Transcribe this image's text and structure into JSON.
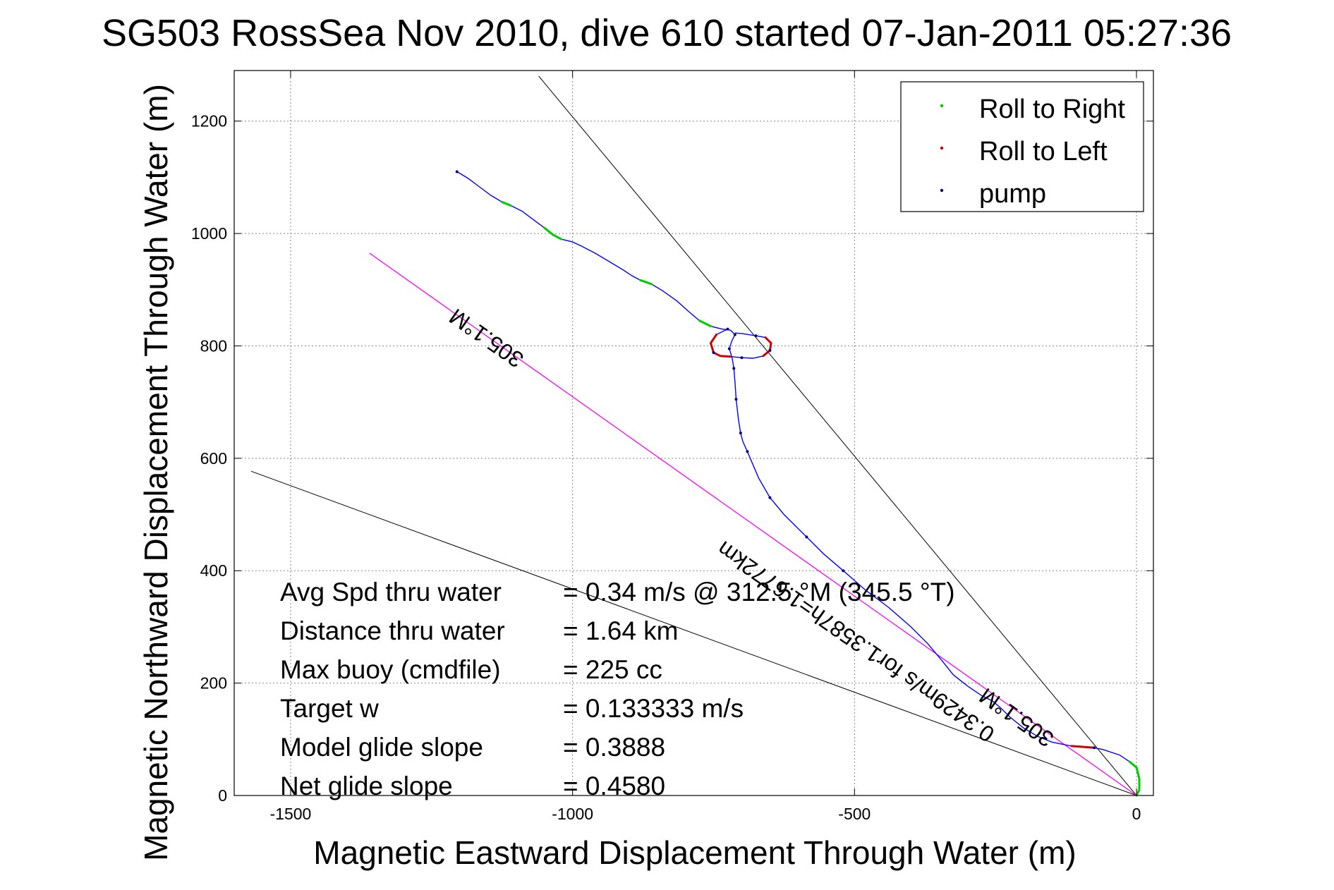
{
  "chart_data": {
    "type": "line",
    "title": "SG503 RossSea Nov 2010, dive 610 started 07-Jan-2011 05:27:36",
    "xlabel": "Magnetic Eastward Displacement Through Water (m)",
    "ylabel": "Magnetic Northward Displacement Through Water (m)",
    "xlim": [
      -1600,
      30
    ],
    "ylim": [
      0,
      1290
    ],
    "xticks": [
      -1500,
      -1000,
      -500,
      0
    ],
    "yticks": [
      0,
      200,
      400,
      600,
      800,
      1000,
      1200
    ],
    "grid": true,
    "legend_position": "top-right",
    "legend": [
      {
        "label": "Roll to Right",
        "color": "#00cc00"
      },
      {
        "label": "Roll to Left",
        "color": "#cc0000"
      },
      {
        "label": "pump",
        "color": "#000080"
      }
    ],
    "track_color": "#0000ff",
    "track": [
      [
        -1205,
        1110
      ],
      [
        -1185,
        1098
      ],
      [
        -1165,
        1083
      ],
      [
        -1145,
        1068
      ],
      [
        -1125,
        1056
      ],
      [
        -1110,
        1050
      ],
      [
        -1090,
        1040
      ],
      [
        -1070,
        1025
      ],
      [
        -1050,
        1010
      ],
      [
        -1035,
        998
      ],
      [
        -1020,
        990
      ],
      [
        -1000,
        985
      ],
      [
        -985,
        978
      ],
      [
        -960,
        965
      ],
      [
        -935,
        950
      ],
      [
        -910,
        935
      ],
      [
        -895,
        925
      ],
      [
        -880,
        917
      ],
      [
        -860,
        910
      ],
      [
        -840,
        898
      ],
      [
        -815,
        880
      ],
      [
        -795,
        862
      ],
      [
        -775,
        845
      ],
      [
        -755,
        835
      ],
      [
        -735,
        830
      ],
      [
        -720,
        828
      ],
      [
        -712,
        820
      ],
      [
        -718,
        808
      ],
      [
        -722,
        795
      ],
      [
        -717,
        778
      ],
      [
        -714,
        760
      ],
      [
        -712,
        735
      ],
      [
        -710,
        705
      ],
      [
        -706,
        670
      ],
      [
        -702,
        645
      ],
      [
        -698,
        630
      ],
      [
        -690,
        612
      ],
      [
        -670,
        565
      ],
      [
        -650,
        530
      ],
      [
        -625,
        500
      ],
      [
        -585,
        460
      ],
      [
        -555,
        430
      ],
      [
        -520,
        400
      ],
      [
        -480,
        365
      ],
      [
        -440,
        335
      ],
      [
        -400,
        300
      ],
      [
        -370,
        270
      ],
      [
        -345,
        240
      ],
      [
        -325,
        215
      ],
      [
        -300,
        195
      ],
      [
        -275,
        178
      ],
      [
        -255,
        168
      ],
      [
        -240,
        155
      ],
      [
        -225,
        140
      ],
      [
        -200,
        120
      ],
      [
        -175,
        105
      ],
      [
        -150,
        95
      ],
      [
        -115,
        88
      ],
      [
        -75,
        85
      ],
      [
        -60,
        82
      ],
      [
        -30,
        72
      ],
      [
        -12,
        60
      ],
      [
        0,
        50
      ],
      [
        5,
        30
      ],
      [
        5,
        10
      ],
      [
        0,
        0
      ]
    ],
    "loop": [
      [
        -725,
        830
      ],
      [
        -745,
        820
      ],
      [
        -755,
        805
      ],
      [
        -750,
        788
      ],
      [
        -738,
        782
      ],
      [
        -720,
        781
      ],
      [
        -700,
        779
      ],
      [
        -680,
        778
      ],
      [
        -662,
        782
      ],
      [
        -650,
        792
      ],
      [
        -648,
        805
      ],
      [
        -658,
        815
      ],
      [
        -675,
        818
      ],
      [
        -700,
        822
      ],
      [
        -712,
        823
      ]
    ],
    "heading_line_color": "#ff00ff",
    "heading_line": [
      [
        -1360,
        965
      ],
      [
        0,
        0
      ]
    ],
    "reference_lines": [
      {
        "from": [
          -1060,
          1280
        ],
        "to": [
          0,
          0
        ]
      },
      {
        "from": [
          -1570,
          577
        ],
        "to": [
          0,
          0
        ]
      }
    ],
    "annotations": [
      {
        "text": "305.1°M",
        "x": -1145,
        "y": 825,
        "rotate": 35
      },
      {
        "text": "0.3429m/s for1.3587h=1.6772km",
        "x": -490,
        "y": 285,
        "rotate": 35
      },
      {
        "text": "305.1°M",
        "x": -205,
        "y": 150,
        "rotate": 35
      }
    ],
    "stats": [
      {
        "label": "Avg Spd thru water",
        "value": "=  0.34 m/s @ 312.5 °M (345.5 °T)"
      },
      {
        "label": "Distance thru water",
        "value": "=  1.64 km"
      },
      {
        "label": "Max buoy (cmdfile)",
        "value": "= 225 cc"
      },
      {
        "label": "Target w",
        "value": "= 0.133333 m/s"
      },
      {
        "label": "Model glide slope",
        "value": "= 0.3888"
      },
      {
        "label": "Net glide slope",
        "value": "= 0.4580"
      }
    ]
  }
}
